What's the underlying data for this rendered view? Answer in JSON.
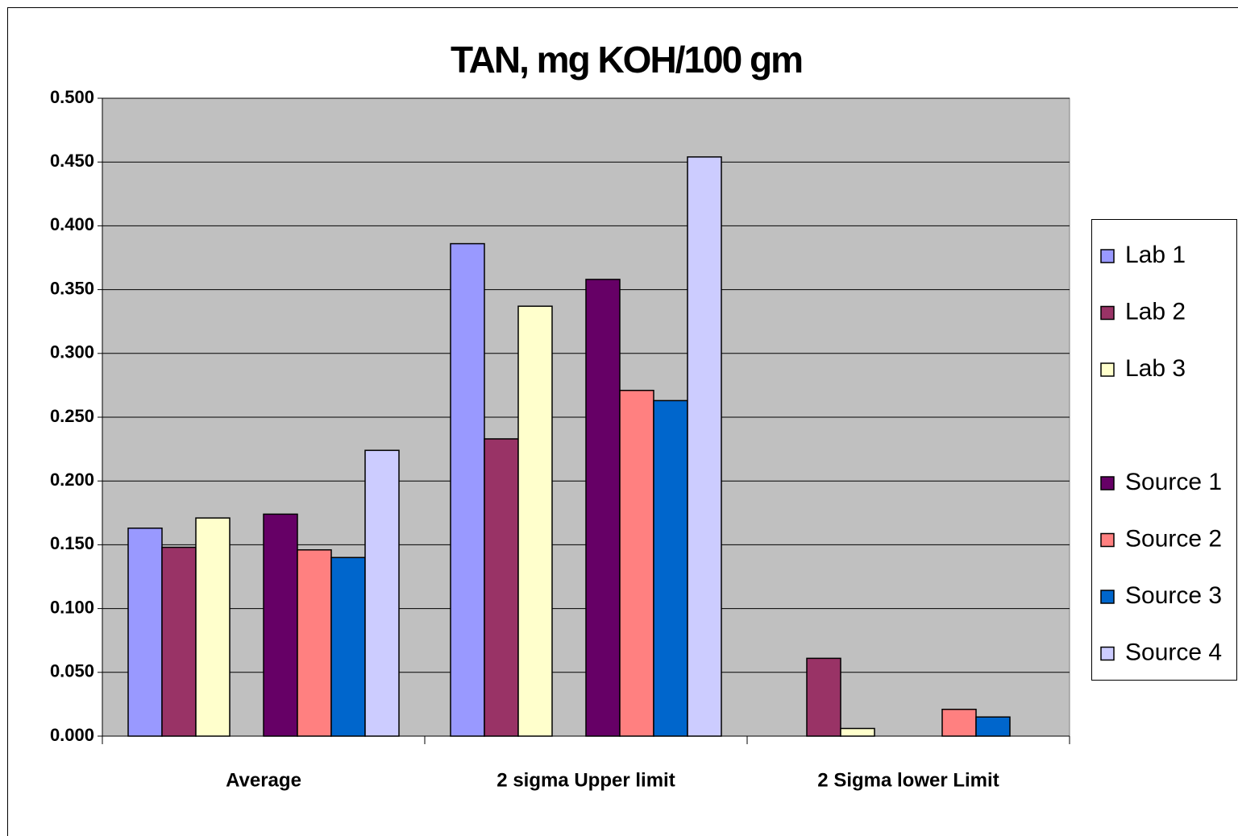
{
  "chart_data": {
    "type": "bar",
    "title": "TAN, mg KOH/100 gm",
    "categories": [
      "Average",
      "2 sigma Upper limit",
      "2 Sigma lower Limit"
    ],
    "series": [
      {
        "name": "Lab 1",
        "color": "#9999ff",
        "values": [
          0.163,
          0.386,
          null
        ]
      },
      {
        "name": "Lab 2",
        "color": "#993366",
        "values": [
          0.148,
          0.233,
          0.061
        ]
      },
      {
        "name": "Lab 3",
        "color": "#ffffcc",
        "values": [
          0.171,
          0.337,
          0.006
        ]
      },
      {
        "name": "Source 1",
        "color": "#660066",
        "values": [
          0.174,
          0.358,
          null
        ]
      },
      {
        "name": "Source 2",
        "color": "#ff8080",
        "values": [
          0.146,
          0.271,
          0.021
        ]
      },
      {
        "name": "Source 3",
        "color": "#0066cc",
        "values": [
          0.14,
          0.263,
          0.015
        ]
      },
      {
        "name": "Source 4",
        "color": "#ccccff",
        "values": [
          0.224,
          0.454,
          null
        ]
      }
    ],
    "ylim": [
      0,
      0.5
    ],
    "yticks": [
      {
        "value": 0,
        "label": "0.000"
      },
      {
        "value": 0.05,
        "label": "0.050"
      },
      {
        "value": 0.1,
        "label": "0.100"
      },
      {
        "value": 0.15,
        "label": "0.150"
      },
      {
        "value": 0.2,
        "label": "0.200"
      },
      {
        "value": 0.25,
        "label": "0.250"
      },
      {
        "value": 0.3,
        "label": "0.300"
      },
      {
        "value": 0.35,
        "label": "0.350"
      },
      {
        "value": 0.4,
        "label": "0.400"
      },
      {
        "value": 0.45,
        "label": "0.450"
      },
      {
        "value": 0.5,
        "label": "0.500"
      }
    ],
    "grid": true,
    "legend": "right",
    "plot_background": "#c0c0c0"
  }
}
